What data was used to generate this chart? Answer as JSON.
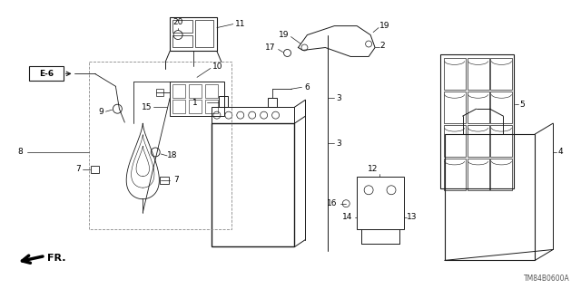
{
  "bg_color": "#ffffff",
  "line_color": "#1a1a1a",
  "label_color": "#000000",
  "diagram_code": "TM84B0600A",
  "fr_label": "FR.",
  "e6_label": "E-6",
  "figsize": [
    6.4,
    3.19
  ],
  "dpi": 100
}
